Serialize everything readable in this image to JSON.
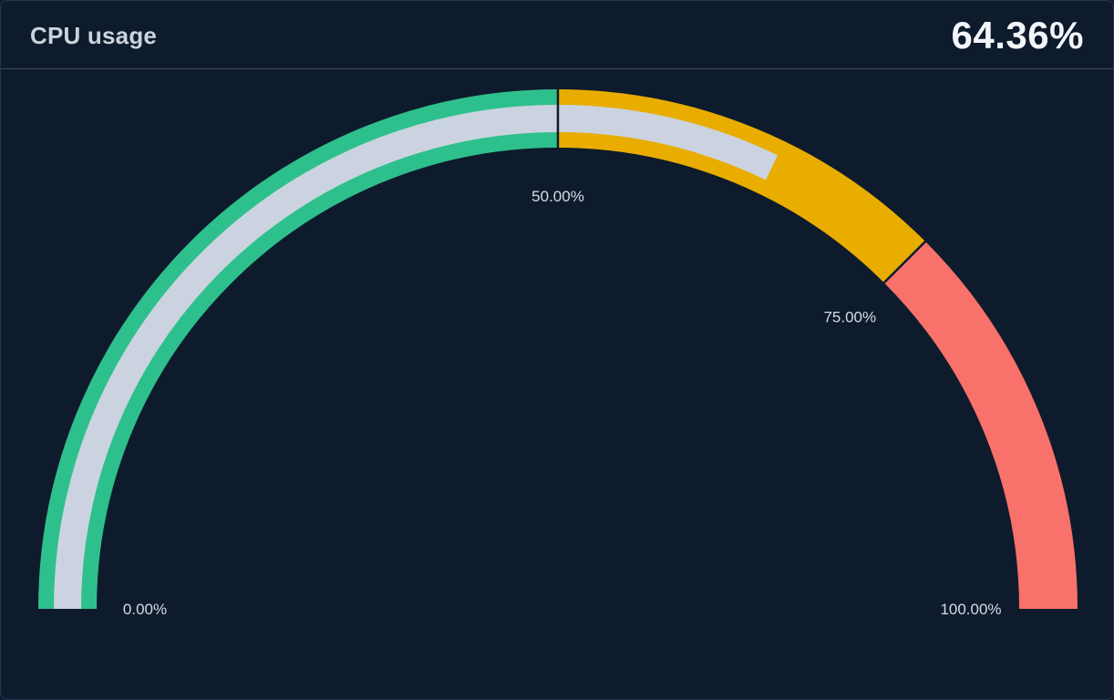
{
  "chart_data": {
    "type": "gauge",
    "title": "CPU usage",
    "value": 64.36,
    "value_display": "64.36%",
    "unit": "%",
    "min": 0,
    "max": 100,
    "layout": "semicircular gauge, 180 degree sweep, min at left, max at right, threshold labels inside arc",
    "background_color": "#0e1b2d",
    "value_arc_color": "#cbd3e0",
    "tick_label_color": "#d5dbe5",
    "thresholds": [
      {
        "from": 0,
        "to": 50,
        "color": "#2ec08c"
      },
      {
        "from": 50,
        "to": 75,
        "color": "#e9ad00"
      },
      {
        "from": 75,
        "to": 100,
        "color": "#f8716a"
      }
    ],
    "tick_labels": [
      {
        "value": 0,
        "label": "0.00%"
      },
      {
        "value": 50,
        "label": "50.00%"
      },
      {
        "value": 75,
        "label": "75.00%"
      },
      {
        "value": 100,
        "label": "100.00%"
      }
    ]
  }
}
